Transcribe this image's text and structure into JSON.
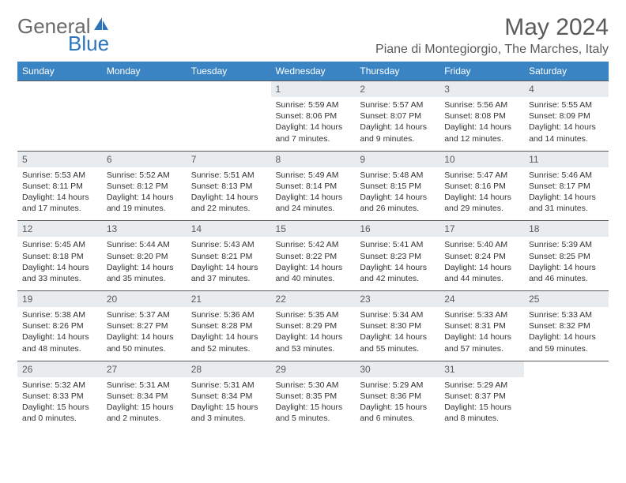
{
  "logo": {
    "text1": "General",
    "text2": "Blue",
    "color1": "#6a6a6a",
    "color2": "#2d75bb",
    "shape_color": "#2d75bb"
  },
  "title": "May 2024",
  "location": "Piane di Montegiorgio, The Marches, Italy",
  "colors": {
    "header_bg": "#3b84c4",
    "header_text": "#ffffff",
    "date_bg": "#e9ecef",
    "date_text": "#5a5a5a",
    "detail_text": "#333333",
    "border": "#5a5a5a"
  },
  "day_names": [
    "Sunday",
    "Monday",
    "Tuesday",
    "Wednesday",
    "Thursday",
    "Friday",
    "Saturday"
  ],
  "weeks": [
    {
      "dates": [
        "",
        "",
        "",
        "1",
        "2",
        "3",
        "4"
      ],
      "details": [
        "",
        "",
        "",
        "Sunrise: 5:59 AM\nSunset: 8:06 PM\nDaylight: 14 hours and 7 minutes.",
        "Sunrise: 5:57 AM\nSunset: 8:07 PM\nDaylight: 14 hours and 9 minutes.",
        "Sunrise: 5:56 AM\nSunset: 8:08 PM\nDaylight: 14 hours and 12 minutes.",
        "Sunrise: 5:55 AM\nSunset: 8:09 PM\nDaylight: 14 hours and 14 minutes."
      ]
    },
    {
      "dates": [
        "5",
        "6",
        "7",
        "8",
        "9",
        "10",
        "11"
      ],
      "details": [
        "Sunrise: 5:53 AM\nSunset: 8:11 PM\nDaylight: 14 hours and 17 minutes.",
        "Sunrise: 5:52 AM\nSunset: 8:12 PM\nDaylight: 14 hours and 19 minutes.",
        "Sunrise: 5:51 AM\nSunset: 8:13 PM\nDaylight: 14 hours and 22 minutes.",
        "Sunrise: 5:49 AM\nSunset: 8:14 PM\nDaylight: 14 hours and 24 minutes.",
        "Sunrise: 5:48 AM\nSunset: 8:15 PM\nDaylight: 14 hours and 26 minutes.",
        "Sunrise: 5:47 AM\nSunset: 8:16 PM\nDaylight: 14 hours and 29 minutes.",
        "Sunrise: 5:46 AM\nSunset: 8:17 PM\nDaylight: 14 hours and 31 minutes."
      ]
    },
    {
      "dates": [
        "12",
        "13",
        "14",
        "15",
        "16",
        "17",
        "18"
      ],
      "details": [
        "Sunrise: 5:45 AM\nSunset: 8:18 PM\nDaylight: 14 hours and 33 minutes.",
        "Sunrise: 5:44 AM\nSunset: 8:20 PM\nDaylight: 14 hours and 35 minutes.",
        "Sunrise: 5:43 AM\nSunset: 8:21 PM\nDaylight: 14 hours and 37 minutes.",
        "Sunrise: 5:42 AM\nSunset: 8:22 PM\nDaylight: 14 hours and 40 minutes.",
        "Sunrise: 5:41 AM\nSunset: 8:23 PM\nDaylight: 14 hours and 42 minutes.",
        "Sunrise: 5:40 AM\nSunset: 8:24 PM\nDaylight: 14 hours and 44 minutes.",
        "Sunrise: 5:39 AM\nSunset: 8:25 PM\nDaylight: 14 hours and 46 minutes."
      ]
    },
    {
      "dates": [
        "19",
        "20",
        "21",
        "22",
        "23",
        "24",
        "25"
      ],
      "details": [
        "Sunrise: 5:38 AM\nSunset: 8:26 PM\nDaylight: 14 hours and 48 minutes.",
        "Sunrise: 5:37 AM\nSunset: 8:27 PM\nDaylight: 14 hours and 50 minutes.",
        "Sunrise: 5:36 AM\nSunset: 8:28 PM\nDaylight: 14 hours and 52 minutes.",
        "Sunrise: 5:35 AM\nSunset: 8:29 PM\nDaylight: 14 hours and 53 minutes.",
        "Sunrise: 5:34 AM\nSunset: 8:30 PM\nDaylight: 14 hours and 55 minutes.",
        "Sunrise: 5:33 AM\nSunset: 8:31 PM\nDaylight: 14 hours and 57 minutes.",
        "Sunrise: 5:33 AM\nSunset: 8:32 PM\nDaylight: 14 hours and 59 minutes."
      ]
    },
    {
      "dates": [
        "26",
        "27",
        "28",
        "29",
        "30",
        "31",
        ""
      ],
      "details": [
        "Sunrise: 5:32 AM\nSunset: 8:33 PM\nDaylight: 15 hours and 0 minutes.",
        "Sunrise: 5:31 AM\nSunset: 8:34 PM\nDaylight: 15 hours and 2 minutes.",
        "Sunrise: 5:31 AM\nSunset: 8:34 PM\nDaylight: 15 hours and 3 minutes.",
        "Sunrise: 5:30 AM\nSunset: 8:35 PM\nDaylight: 15 hours and 5 minutes.",
        "Sunrise: 5:29 AM\nSunset: 8:36 PM\nDaylight: 15 hours and 6 minutes.",
        "Sunrise: 5:29 AM\nSunset: 8:37 PM\nDaylight: 15 hours and 8 minutes.",
        ""
      ]
    }
  ]
}
